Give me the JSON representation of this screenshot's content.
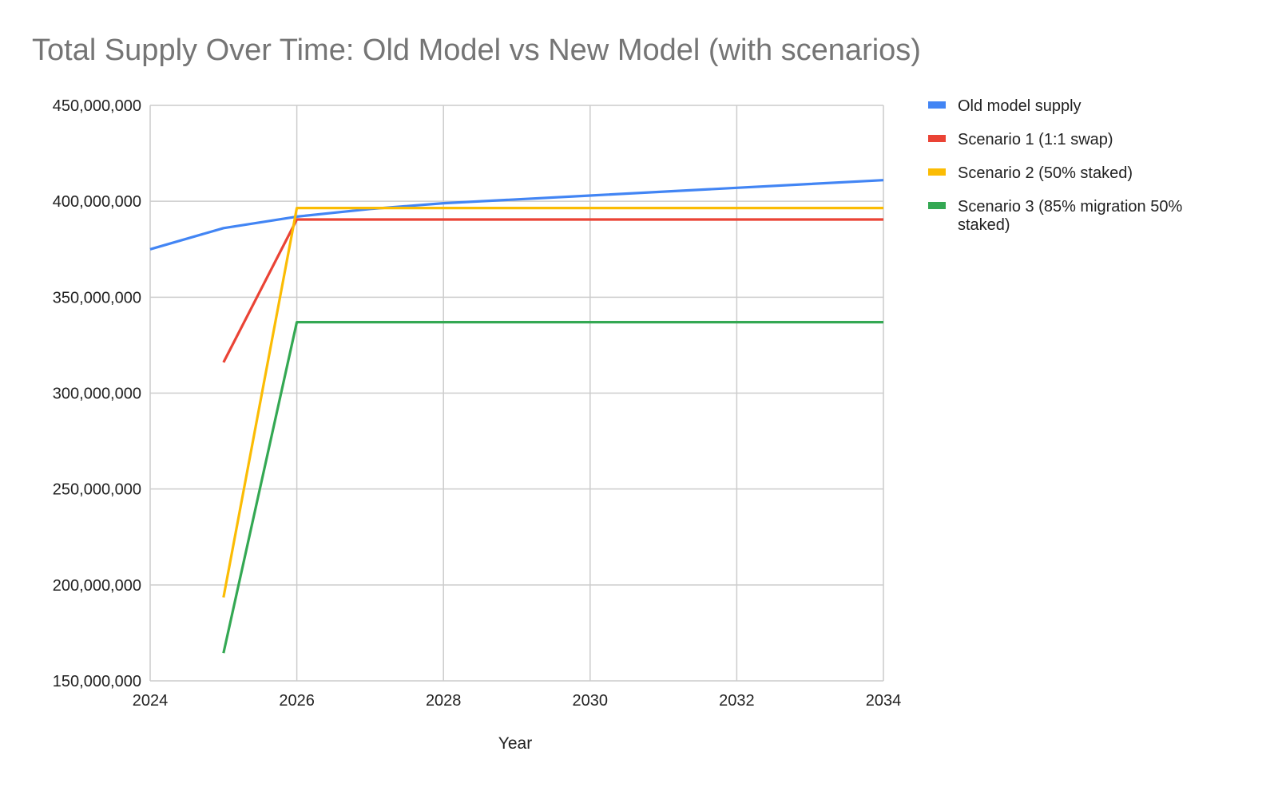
{
  "chart_data": {
    "type": "line",
    "title": "Total Supply Over Time: Old Model vs New Model (with scenarios)",
    "xlabel": "Year",
    "ylabel": "",
    "xlim": [
      2024,
      2034
    ],
    "ylim": [
      150000000,
      450000000
    ],
    "x_ticks": [
      2024,
      2026,
      2028,
      2030,
      2032,
      2034
    ],
    "x_tick_labels": [
      "2024",
      "2026",
      "2028",
      "2030",
      "2032",
      "2034"
    ],
    "y_ticks": [
      150000000,
      200000000,
      250000000,
      300000000,
      350000000,
      400000000,
      450000000
    ],
    "y_tick_labels": [
      "150,000,000",
      "200,000,000",
      "250,000,000",
      "300,000,000",
      "350,000,000",
      "400,000,000",
      "450,000,000"
    ],
    "grid": true,
    "legend_position": "right",
    "series": [
      {
        "name": "Old model supply",
        "legend_lines": [
          "Old model supply"
        ],
        "color": "#4285F4",
        "x": [
          2024,
          2025,
          2026,
          2027,
          2028,
          2029,
          2030,
          2031,
          2032,
          2033,
          2034
        ],
        "values": [
          375000000,
          386000000,
          392000000,
          396000000,
          399000000,
          401000000,
          403000000,
          405000000,
          407000000,
          409000000,
          411000000
        ]
      },
      {
        "name": "Scenario 1 (1:1 swap)",
        "legend_lines": [
          "Scenario 1 (1:1 swap)"
        ],
        "color": "#EA4335",
        "x": [
          2025,
          2026,
          2027,
          2028,
          2029,
          2030,
          2031,
          2032,
          2033,
          2034
        ],
        "values": [
          316000000,
          390500000,
          390500000,
          390500000,
          390500000,
          390500000,
          390500000,
          390500000,
          390500000,
          390500000
        ]
      },
      {
        "name": "Scenario 2 (50% staked)",
        "legend_lines": [
          "Scenario 2 (50% staked)"
        ],
        "color": "#FBBC04",
        "x": [
          2025,
          2026,
          2027,
          2028,
          2029,
          2030,
          2031,
          2032,
          2033,
          2034
        ],
        "values": [
          193500000,
          396500000,
          396500000,
          396500000,
          396500000,
          396500000,
          396500000,
          396500000,
          396500000,
          396500000
        ]
      },
      {
        "name": "Scenario 3 (85% migration 50% staked)",
        "legend_lines": [
          "Scenario 3 (85% migration 50%",
          "staked)"
        ],
        "color": "#34A853",
        "x": [
          2025,
          2026,
          2027,
          2028,
          2029,
          2030,
          2031,
          2032,
          2033,
          2034
        ],
        "values": [
          164500000,
          337000000,
          337000000,
          337000000,
          337000000,
          337000000,
          337000000,
          337000000,
          337000000,
          337000000
        ]
      }
    ]
  }
}
